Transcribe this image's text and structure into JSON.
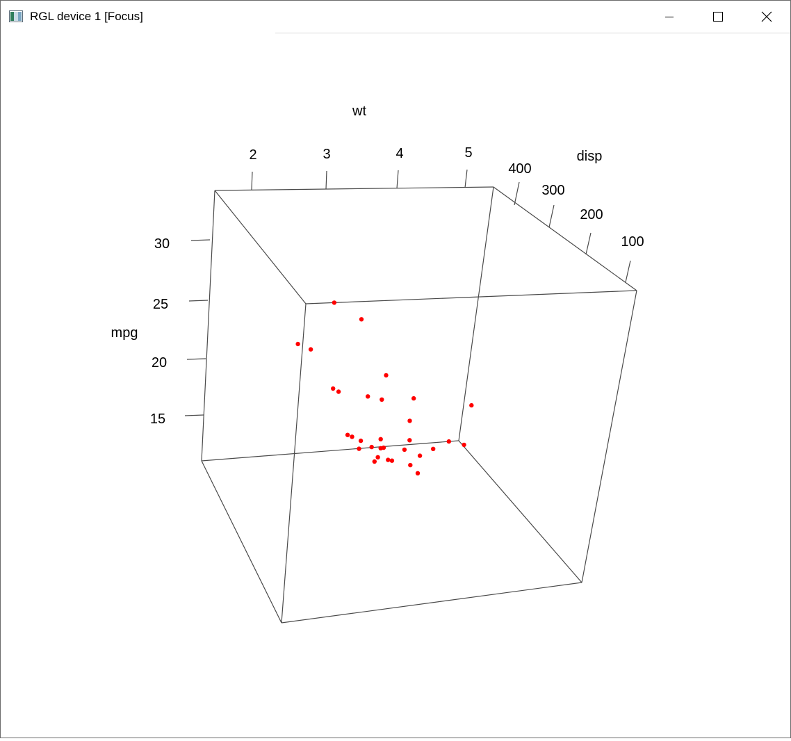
{
  "window": {
    "title": "RGL device 1 [Focus]",
    "icon": "rgl-app-icon",
    "controls": [
      "minimize",
      "maximize",
      "close"
    ]
  },
  "chart_data": {
    "type": "scatter",
    "dimensions": 3,
    "xlabel": "wt",
    "ylabel": "mpg",
    "zlabel": "disp",
    "x_ticks": [
      "2",
      "3",
      "4",
      "5"
    ],
    "y_ticks": [
      "15",
      "20",
      "25",
      "30"
    ],
    "z_ticks": [
      "400",
      "300",
      "200",
      "100"
    ],
    "xlim": [
      1.5,
      5.4
    ],
    "ylim": [
      10.4,
      33.9
    ],
    "zlim": [
      71.1,
      472
    ],
    "box": true,
    "point_color": "#ff0000",
    "points": [
      {
        "wt": 2.62,
        "mpg": 21.0,
        "disp": 160
      },
      {
        "wt": 2.875,
        "mpg": 21.0,
        "disp": 160
      },
      {
        "wt": 2.32,
        "mpg": 22.8,
        "disp": 108
      },
      {
        "wt": 3.215,
        "mpg": 21.4,
        "disp": 258
      },
      {
        "wt": 3.44,
        "mpg": 18.7,
        "disp": 360
      },
      {
        "wt": 3.46,
        "mpg": 18.1,
        "disp": 225
      },
      {
        "wt": 3.57,
        "mpg": 14.3,
        "disp": 360
      },
      {
        "wt": 3.19,
        "mpg": 24.4,
        "disp": 146.7
      },
      {
        "wt": 3.15,
        "mpg": 22.8,
        "disp": 140.8
      },
      {
        "wt": 3.44,
        "mpg": 19.2,
        "disp": 167.6
      },
      {
        "wt": 3.44,
        "mpg": 17.8,
        "disp": 167.6
      },
      {
        "wt": 4.07,
        "mpg": 16.4,
        "disp": 275.8
      },
      {
        "wt": 3.73,
        "mpg": 17.3,
        "disp": 275.8
      },
      {
        "wt": 3.78,
        "mpg": 15.2,
        "disp": 275.8
      },
      {
        "wt": 5.25,
        "mpg": 10.4,
        "disp": 472
      },
      {
        "wt": 5.424,
        "mpg": 10.4,
        "disp": 460
      },
      {
        "wt": 5.345,
        "mpg": 14.7,
        "disp": 440
      },
      {
        "wt": 2.2,
        "mpg": 32.4,
        "disp": 78.7
      },
      {
        "wt": 1.615,
        "mpg": 30.4,
        "disp": 75.7
      },
      {
        "wt": 1.835,
        "mpg": 33.9,
        "disp": 71.1
      },
      {
        "wt": 2.465,
        "mpg": 21.5,
        "disp": 120.1
      },
      {
        "wt": 3.52,
        "mpg": 15.5,
        "disp": 318
      },
      {
        "wt": 3.435,
        "mpg": 15.2,
        "disp": 304
      },
      {
        "wt": 3.84,
        "mpg": 13.3,
        "disp": 350
      },
      {
        "wt": 3.845,
        "mpg": 19.2,
        "disp": 400
      },
      {
        "wt": 1.935,
        "mpg": 27.3,
        "disp": 79
      },
      {
        "wt": 2.14,
        "mpg": 26.0,
        "disp": 120.3
      },
      {
        "wt": 1.513,
        "mpg": 30.4,
        "disp": 95.1
      },
      {
        "wt": 3.17,
        "mpg": 15.8,
        "disp": 351
      },
      {
        "wt": 2.77,
        "mpg": 19.7,
        "disp": 145
      },
      {
        "wt": 3.57,
        "mpg": 15.0,
        "disp": 301
      },
      {
        "wt": 2.78,
        "mpg": 21.4,
        "disp": 121
      }
    ]
  }
}
